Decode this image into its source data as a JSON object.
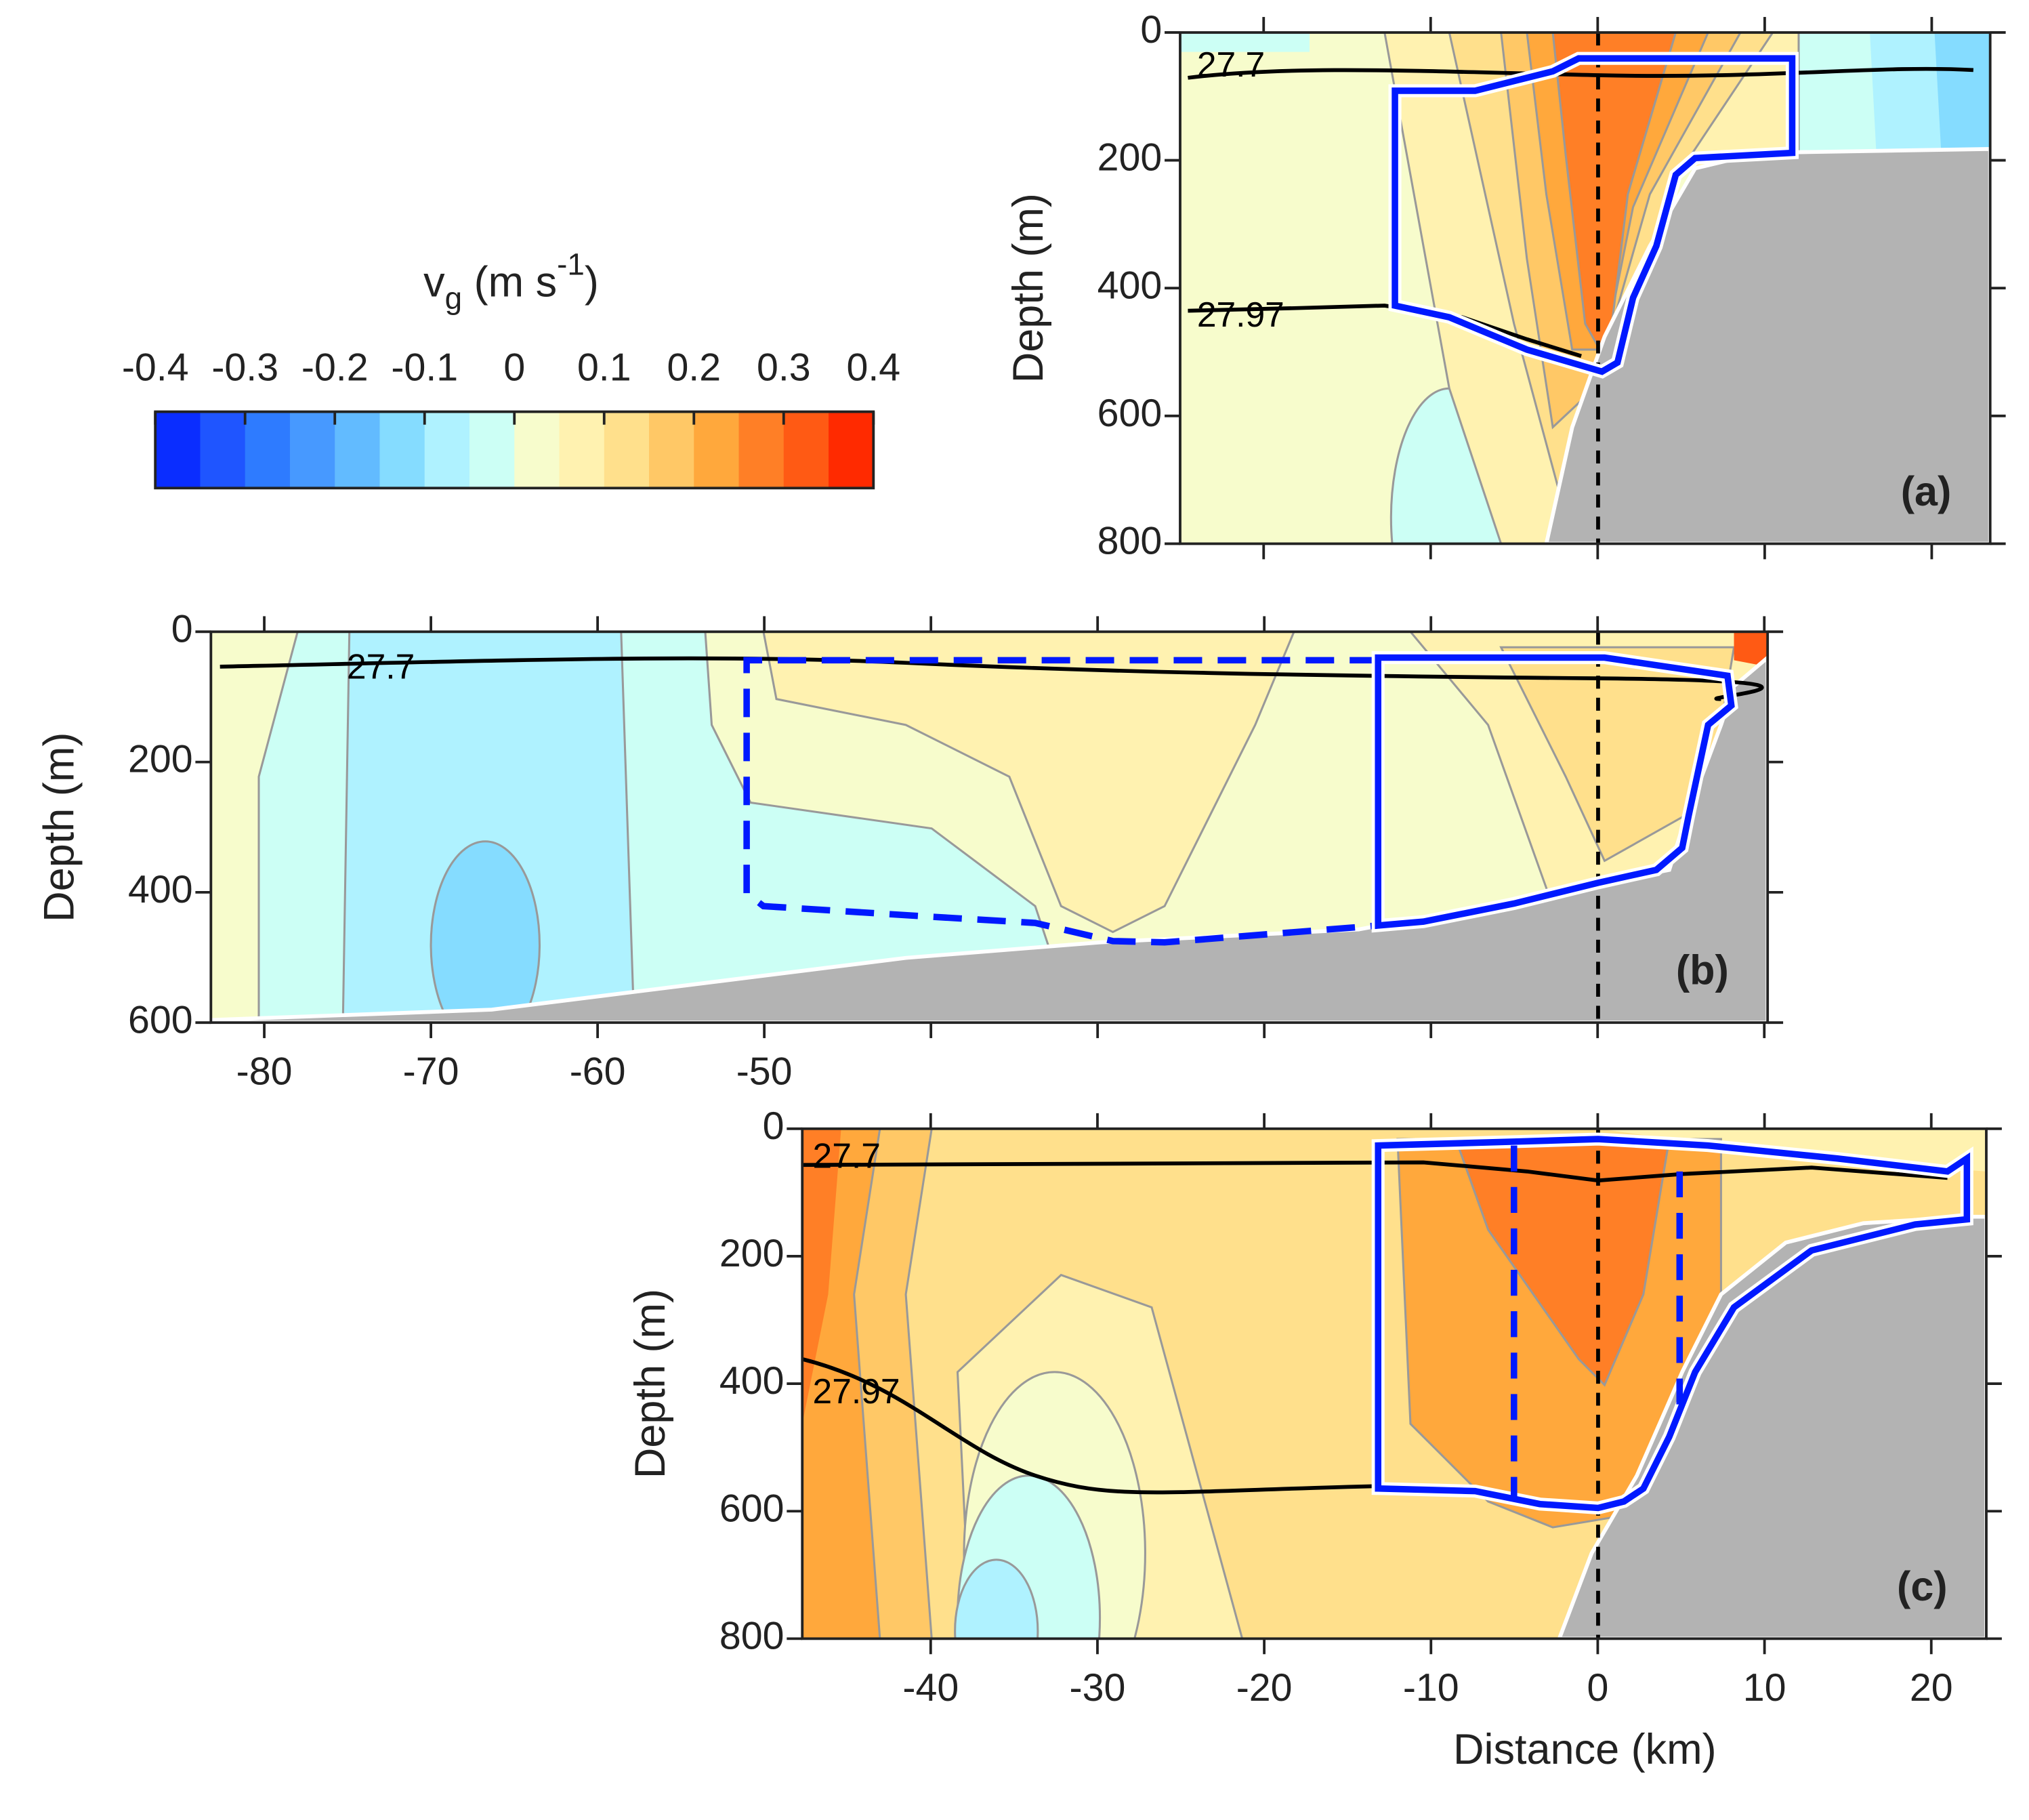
{
  "chart_data": [
    {
      "type": "colorbar",
      "title_parts": [
        "v",
        "g",
        " (m s",
        "-1",
        ")"
      ],
      "lim": [
        -0.4,
        0.4
      ],
      "ticks": [
        -0.4,
        -0.3,
        -0.2,
        -0.1,
        0,
        0.1,
        0.2,
        0.3,
        0.4
      ],
      "colors": [
        "#0a2dff",
        "#1f55ff",
        "#2e7bff",
        "#4799ff",
        "#62bbff",
        "#85dcff",
        "#aff2ff",
        "#ccfff5",
        "#f7fccc",
        "#fff2b0",
        "#ffe08c",
        "#ffc866",
        "#ffa83c",
        "#ff7f26",
        "#ff5a14",
        "#ff2a00"
      ]
    },
    {
      "type": "section",
      "panel_label": "(a)",
      "ylabel": "Depth (m)",
      "xlim": [
        -25,
        23.5
      ],
      "ylim": [
        0,
        800
      ],
      "yticks": [
        0,
        200,
        400,
        600,
        800
      ],
      "xticks": [],
      "xticks_unlabeled": [
        -20,
        -10,
        0,
        10,
        20
      ],
      "annotations": [
        "27.7",
        "27.97"
      ]
    },
    {
      "type": "section",
      "panel_label": "(b)",
      "ylabel": "Depth (m)",
      "xlim": [
        -83.2,
        10.2
      ],
      "ylim": [
        0,
        600
      ],
      "yticks": [
        0,
        200,
        400,
        600
      ],
      "xticks": [
        -80,
        -70,
        -60,
        -50
      ],
      "xticks_unlabeled": [
        -40,
        -30,
        -20,
        -10,
        0,
        10
      ],
      "annotations": [
        "27.7"
      ]
    },
    {
      "type": "section",
      "panel_label": "(c)",
      "ylabel": "Depth (m)",
      "xlabel": "Distance (km)",
      "xlim": [
        -47.7,
        23.3
      ],
      "ylim": [
        0,
        800
      ],
      "yticks": [
        0,
        200,
        400,
        600,
        800
      ],
      "xticks": [
        -40,
        -30,
        -20,
        -10,
        0,
        10,
        20
      ],
      "xticks_unlabeled": [],
      "annotations": [
        "27.7",
        "27.97"
      ]
    }
  ]
}
